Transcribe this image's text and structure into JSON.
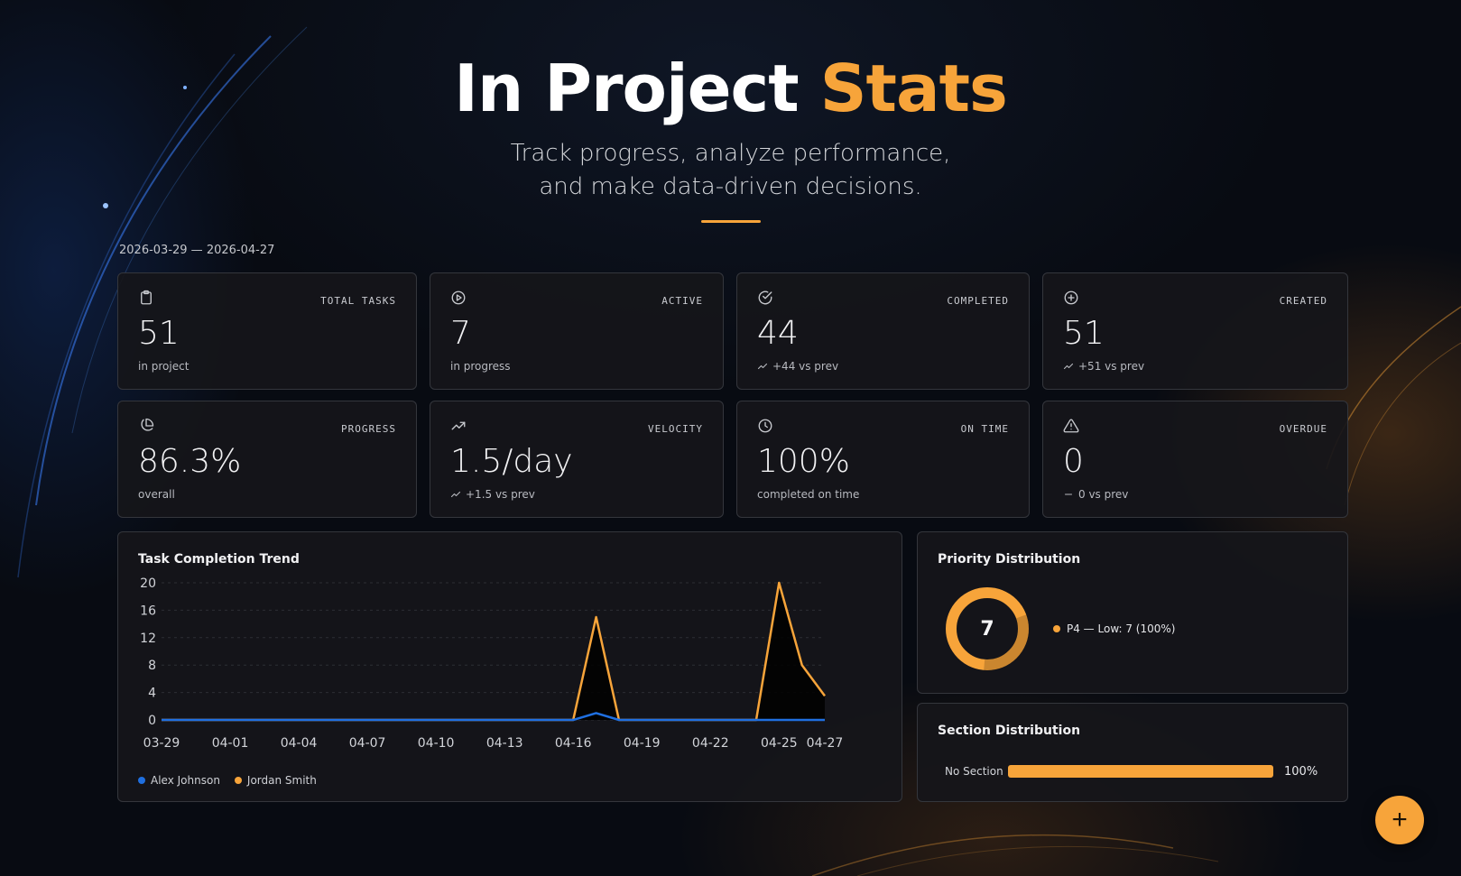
{
  "hero": {
    "title_main": "In Project",
    "title_accent": "Stats",
    "subtitle_line1": "Track progress, analyze performance,",
    "subtitle_line2": "and make data-driven decisions."
  },
  "date_range": "2026-03-29 — 2026-04-27",
  "stats": [
    {
      "label": "TOTAL TASKS",
      "value": "51",
      "sub": "in project",
      "icon": "clipboard-icon"
    },
    {
      "label": "ACTIVE",
      "value": "7",
      "sub": "in progress",
      "icon": "play-circle-icon"
    },
    {
      "label": "COMPLETED",
      "value": "44",
      "sub": "+44 vs prev",
      "icon": "check-circle-icon"
    },
    {
      "label": "CREATED",
      "value": "51",
      "sub": "+51 vs prev",
      "icon": "plus-circle-icon"
    },
    {
      "label": "PROGRESS",
      "value": "86.3%",
      "sub": "overall",
      "icon": "pie-chart-icon"
    },
    {
      "label": "VELOCITY",
      "value": "1.5/day",
      "sub": "+1.5 vs prev",
      "icon": "trending-up-icon"
    },
    {
      "label": "ON TIME",
      "value": "100%",
      "sub": "completed on time",
      "icon": "clock-icon"
    },
    {
      "label": "OVERDUE",
      "value": "0",
      "sub": "0 vs prev",
      "icon": "alert-triangle-icon"
    }
  ],
  "trend": {
    "title": "Task Completion Trend",
    "legend": [
      {
        "name": "Alex Johnson",
        "color": "#1f6fe0"
      },
      {
        "name": "Jordan Smith",
        "color": "#f7a43a"
      }
    ]
  },
  "priority": {
    "title": "Priority Distribution",
    "center_value": "7",
    "legend_label": "P4 — Low: 7 (100%)",
    "color": "#f7a43a"
  },
  "section": {
    "title": "Section Distribution",
    "label": "No Section",
    "percent_label": "100%",
    "fraction": 1.0
  },
  "fab_label": "+",
  "chart_data": {
    "type": "area",
    "title": "Task Completion Trend",
    "ylim": [
      0,
      20
    ],
    "yticks": [
      0,
      4,
      8,
      12,
      16,
      20
    ],
    "x_tick_labels": [
      "03-29",
      "04-01",
      "04-04",
      "04-07",
      "04-10",
      "04-13",
      "04-16",
      "04-19",
      "04-22",
      "04-25",
      "04-27"
    ],
    "x": [
      "03-29",
      "03-30",
      "03-31",
      "04-01",
      "04-02",
      "04-03",
      "04-04",
      "04-05",
      "04-06",
      "04-07",
      "04-08",
      "04-09",
      "04-10",
      "04-11",
      "04-12",
      "04-13",
      "04-14",
      "04-15",
      "04-16",
      "04-17",
      "04-18",
      "04-19",
      "04-20",
      "04-21",
      "04-22",
      "04-23",
      "04-24",
      "04-25",
      "04-26",
      "04-27"
    ],
    "series": [
      {
        "name": "Alex Johnson",
        "color": "#1f6fe0",
        "values": [
          0,
          0,
          0,
          0,
          0,
          0,
          0,
          0,
          0,
          0,
          0,
          0,
          0,
          0,
          0,
          0,
          0,
          0,
          0,
          1,
          0,
          0,
          0,
          0,
          0,
          0,
          0,
          0,
          0,
          0
        ]
      },
      {
        "name": "Jordan Smith",
        "color": "#f7a43a",
        "values": [
          0,
          0,
          0,
          0,
          0,
          0,
          0,
          0,
          0,
          0,
          0,
          0,
          0,
          0,
          0,
          0,
          0,
          0,
          0,
          15,
          0,
          0,
          0,
          0,
          0,
          0,
          0,
          20,
          8,
          3.5
        ]
      }
    ]
  }
}
